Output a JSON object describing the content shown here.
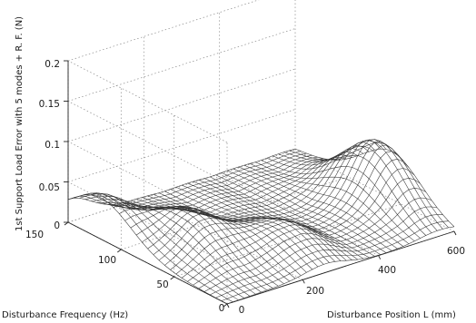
{
  "chart_data": {
    "type": "surface",
    "title": "",
    "zlabel": "1st Support Load Error with 5 modes + R. F. (N)",
    "xlabel": "Disturbance Position L (mm)",
    "ylabel": "Disturbance Frequency (Hz)",
    "xlim": [
      0,
      600
    ],
    "ylim": [
      0,
      150
    ],
    "zlim": [
      0,
      0.2
    ],
    "x_ticks": [
      "0",
      "200",
      "400",
      "600"
    ],
    "y_ticks": [
      "0",
      "50",
      "100",
      "150"
    ],
    "z_ticks": [
      "0",
      "0.05",
      "0.1",
      "0.15",
      "0.2"
    ],
    "grid": true,
    "peaks": [
      {
        "x": 0,
        "y": 120,
        "z": 0.05
      },
      {
        "x": 120,
        "y": 75,
        "z": 0.045
      },
      {
        "x": 260,
        "y": 40,
        "z": 0.03
      },
      {
        "x": 560,
        "y": 60,
        "z": 0.075
      }
    ]
  }
}
